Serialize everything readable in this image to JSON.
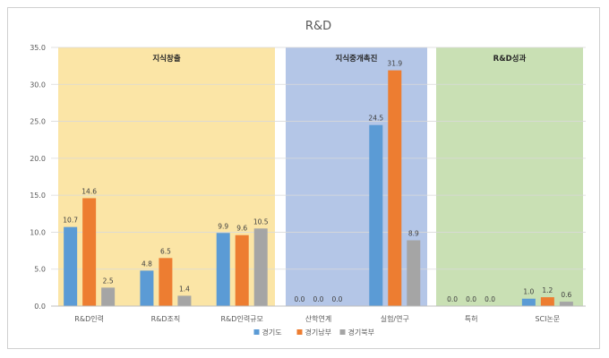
{
  "chart_data": {
    "type": "bar",
    "title": "R&D",
    "categories": [
      "R&D인력",
      "R&D조직",
      "R&D인력규모",
      "산학연계",
      "실험/연구",
      "특허",
      "SCI논문"
    ],
    "series": [
      {
        "name": "경기도",
        "color": "#5b9bd5",
        "values": [
          10.7,
          4.8,
          9.9,
          0.0,
          24.5,
          0.0,
          1.0
        ]
      },
      {
        "name": "경기남부",
        "color": "#ed7d31",
        "values": [
          14.6,
          6.5,
          9.6,
          0.0,
          31.9,
          0.0,
          1.2
        ]
      },
      {
        "name": "경기북부",
        "color": "#a5a5a5",
        "values": [
          2.5,
          1.4,
          10.5,
          0.0,
          8.9,
          0.0,
          0.6
        ]
      }
    ],
    "value_labels": {
      "경기도": [
        "10.7",
        "4.8",
        "9.9",
        "0.0",
        "24.5",
        "0.0",
        "1.0"
      ],
      "경기남부": [
        "14.6",
        "6.5",
        "9.6",
        "0.0",
        "31.9",
        "0.0",
        "1.2"
      ],
      "경기북부": [
        "2.5",
        "1.4",
        "10.5",
        "0.0",
        "8.9",
        "0.0",
        "0.6"
      ]
    },
    "ylim": [
      0,
      35
    ],
    "yticks": [
      "0.0",
      "5.0",
      "10.0",
      "15.0",
      "20.0",
      "25.0",
      "30.0",
      "35.0"
    ],
    "grid": true,
    "legend_position": "bottom",
    "regions": [
      {
        "label": "지식창출",
        "categories": [
          0,
          2
        ],
        "color": "#fbe5a6"
      },
      {
        "label": "지식중개촉진",
        "categories": [
          3,
          4
        ],
        "color": "#b4c6e7"
      },
      {
        "label": "R&D성과",
        "categories": [
          5,
          6
        ],
        "color": "#c9e0b4"
      }
    ]
  }
}
